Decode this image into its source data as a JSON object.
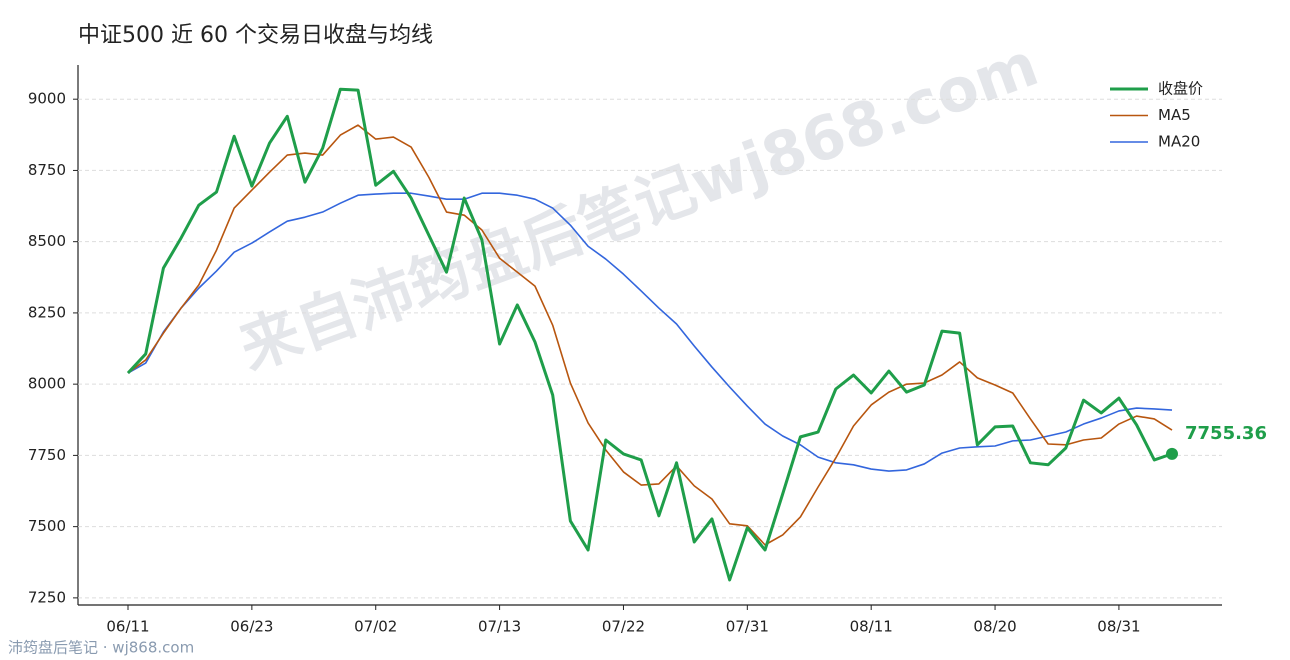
{
  "chart_data": {
    "type": "line",
    "title": "中证500 近 60 个交易日收盘与均线",
    "watermark": "来自沛筠盘后笔记wj868.com",
    "footer": "沛筠盘后笔记 · wj868.com",
    "categories": [
      "06/11",
      null,
      null,
      null,
      null,
      null,
      null,
      "06/23",
      null,
      null,
      null,
      null,
      null,
      null,
      "07/02",
      null,
      null,
      null,
      null,
      null,
      null,
      "07/13",
      null,
      null,
      null,
      null,
      null,
      null,
      "07/22",
      null,
      null,
      null,
      null,
      null,
      null,
      "07/31",
      null,
      null,
      null,
      null,
      null,
      null,
      "08/11",
      null,
      null,
      null,
      null,
      null,
      null,
      "08/20",
      null,
      null,
      null,
      null,
      null,
      null,
      "08/31",
      null,
      null,
      null
    ],
    "series": [
      {
        "name": "收盘价",
        "color": "#1f9e4a",
        "width": 3,
        "values": [
          8039,
          8106,
          8407,
          8513,
          8628,
          8674,
          8870,
          8695,
          8846,
          8940,
          8709,
          8828,
          9035,
          9032,
          8698,
          8747,
          8653,
          8523,
          8393,
          8653,
          8506,
          8141,
          8278,
          8148,
          7962,
          7520,
          7418,
          7804,
          7755,
          7734,
          7538,
          7724,
          7446,
          7527,
          7313,
          7496,
          7418,
          7615,
          7815,
          7832,
          7983,
          8032,
          7969,
          8046,
          7972,
          7997,
          8186,
          8179,
          7787,
          7850,
          7853,
          7724,
          7717,
          7776,
          7944,
          7899,
          7951,
          7857,
          7734,
          7755.36
        ]
      },
      {
        "name": "MA5",
        "color": "#b8560f",
        "width": 1.6,
        "values": [
          8039,
          8085,
          8179,
          8267,
          8348,
          8470,
          8618,
          8681,
          8744,
          8804,
          8811,
          8804,
          8874,
          8909,
          8860,
          8867,
          8832,
          8726,
          8604,
          8593,
          8541,
          8442,
          8393,
          8344,
          8207,
          8004,
          7864,
          7769,
          7692,
          7646,
          7650,
          7713,
          7643,
          7597,
          7510,
          7503,
          7436,
          7471,
          7534,
          7639,
          7741,
          7853,
          7927,
          7972,
          8000,
          8004,
          8032,
          8078,
          8022,
          7997,
          7969,
          7878,
          7790,
          7787,
          7804,
          7811,
          7860,
          7888,
          7878,
          7839
        ]
      },
      {
        "name": "MA20",
        "color": "#3366dd",
        "width": 1.6,
        "values": [
          8039,
          8074,
          8183,
          8267,
          8337,
          8397,
          8463,
          8495,
          8534,
          8572,
          8586,
          8604,
          8635,
          8663,
          8667,
          8670,
          8670,
          8660,
          8649,
          8649,
          8670,
          8670,
          8663,
          8649,
          8618,
          8558,
          8484,
          8439,
          8386,
          8327,
          8267,
          8211,
          8134,
          8060,
          7990,
          7923,
          7860,
          7818,
          7787,
          7744,
          7724,
          7717,
          7702,
          7695,
          7699,
          7720,
          7758,
          7776,
          7780,
          7783,
          7801,
          7804,
          7818,
          7832,
          7860,
          7881,
          7906,
          7916,
          7913,
          7909
        ]
      }
    ],
    "ylim": [
      7225,
      9120
    ],
    "yticks": [
      7250,
      7500,
      7750,
      8000,
      8250,
      8500,
      8750,
      9000
    ],
    "grid": true,
    "legend": "top-right"
  }
}
